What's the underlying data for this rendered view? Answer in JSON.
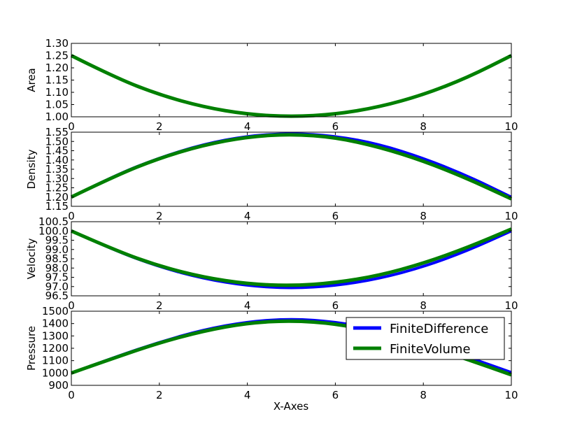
{
  "chart_data": {
    "type": "line",
    "xlabel": "X-Axes",
    "xlim": [
      0,
      10
    ],
    "xticks": [
      0,
      2,
      4,
      6,
      8,
      10
    ],
    "colors": {
      "FiniteDifference": "#0000ff",
      "FiniteVolume": "#008000"
    },
    "legend": {
      "entries": [
        "FiniteDifference",
        "FiniteVolume"
      ],
      "placement": "upper-right of bottom subplot"
    },
    "subplots": [
      {
        "ylabel": "Area",
        "ylim": [
          1.0,
          1.3
        ],
        "yticks": [
          "1.00",
          "1.05",
          "1.10",
          "1.15",
          "1.20",
          "1.25",
          "1.30"
        ],
        "series": [
          {
            "name": "FiniteDifference",
            "x": [
              0,
              1,
              2,
              3,
              4,
              5,
              6,
              7,
              8,
              9,
              10
            ],
            "values": [
              1.25,
              1.16,
              1.09,
              1.04,
              1.01,
              1.0,
              1.01,
              1.04,
              1.09,
              1.16,
              1.25
            ]
          },
          {
            "name": "FiniteVolume",
            "x": [
              0,
              1,
              2,
              3,
              4,
              5,
              6,
              7,
              8,
              9,
              10
            ],
            "values": [
              1.25,
              1.16,
              1.09,
              1.04,
              1.01,
              1.0,
              1.01,
              1.04,
              1.09,
              1.16,
              1.25
            ]
          }
        ]
      },
      {
        "ylabel": "Density",
        "ylim": [
          1.15,
          1.55
        ],
        "yticks": [
          "1.15",
          "1.20",
          "1.25",
          "1.30",
          "1.35",
          "1.40",
          "1.45",
          "1.50",
          "1.55"
        ],
        "series": [
          {
            "name": "FiniteDifference",
            "x": [
              0,
              1,
              2,
              3,
              4,
              5,
              6,
              7,
              8,
              9,
              10
            ],
            "values": [
              1.2,
              1.318,
              1.412,
              1.485,
              1.53,
              1.545,
              1.53,
              1.485,
              1.41,
              1.315,
              1.2
            ]
          },
          {
            "name": "FiniteVolume",
            "x": [
              0,
              1,
              2,
              3,
              4,
              5,
              6,
              7,
              8,
              9,
              10
            ],
            "values": [
              1.2,
              1.315,
              1.41,
              1.48,
              1.525,
              1.54,
              1.522,
              1.47,
              1.395,
              1.3,
              1.19
            ]
          }
        ]
      },
      {
        "ylabel": "Velocity",
        "ylim": [
          96.5,
          100.5
        ],
        "yticks": [
          "96.5",
          "97.0",
          "97.5",
          "98.0",
          "98.5",
          "99.0",
          "99.5",
          "100.0",
          "100.5"
        ],
        "series": [
          {
            "name": "FiniteDifference",
            "x": [
              0,
              1,
              2,
              3,
              4,
              5,
              6,
              7,
              8,
              9,
              10
            ],
            "values": [
              100.0,
              98.93,
              98.06,
              97.43,
              97.04,
              96.9,
              97.04,
              97.43,
              98.06,
              98.93,
              100.0
            ]
          },
          {
            "name": "FiniteVolume",
            "x": [
              0,
              1,
              2,
              3,
              4,
              5,
              6,
              7,
              8,
              9,
              10
            ],
            "values": [
              100.0,
              98.95,
              98.1,
              97.5,
              97.14,
              97.04,
              97.2,
              97.6,
              98.25,
              99.1,
              100.1
            ]
          }
        ]
      },
      {
        "ylabel": "Pressure",
        "ylim": [
          900,
          1500
        ],
        "yticks": [
          "900",
          "1000",
          "1100",
          "1200",
          "1300",
          "1400",
          "1500"
        ],
        "series": [
          {
            "name": "FiniteDifference",
            "x": [
              0,
              1,
              2,
              3,
              4,
              5,
              6,
              7,
              8,
              9,
              10
            ],
            "values": [
              1000,
              1130,
              1250,
              1350,
              1415,
              1440,
              1415,
              1350,
              1250,
              1130,
              1005
            ]
          },
          {
            "name": "FiniteVolume",
            "x": [
              0,
              1,
              2,
              3,
              4,
              5,
              6,
              7,
              8,
              9,
              10
            ],
            "values": [
              1000,
              1125,
              1245,
              1340,
              1405,
              1425,
              1400,
              1330,
              1230,
              1110,
              985
            ]
          }
        ]
      }
    ]
  }
}
